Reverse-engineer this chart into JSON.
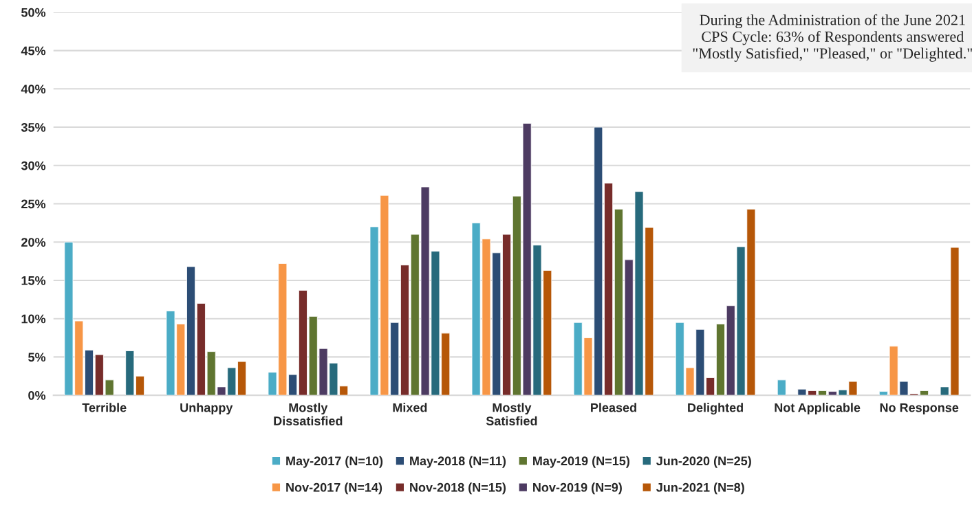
{
  "chart_data": {
    "type": "bar",
    "categories": [
      "Terrible",
      "Unhappy",
      "Mostly\nDissatisfied",
      "Mixed",
      "Mostly\nSatisfied",
      "Pleased",
      "Delighted",
      "Not Applicable",
      "No Response"
    ],
    "series": [
      {
        "name": "May-2017 (N=10)",
        "color": "#4bacc6",
        "values": [
          20,
          11,
          3,
          22,
          22.5,
          9.5,
          9.5,
          2,
          0.5
        ]
      },
      {
        "name": "Nov-2017 (N=14)",
        "color": "#f79646",
        "values": [
          9.7,
          9.3,
          17.2,
          26.1,
          20.4,
          7.5,
          3.6,
          null,
          6.4
        ]
      },
      {
        "name": "May-2018 (N=11)",
        "color": "#2c4d75",
        "values": [
          5.9,
          16.8,
          2.7,
          9.5,
          18.6,
          35,
          8.6,
          0.8,
          1.8
        ]
      },
      {
        "name": "Nov-2018 (N=15)",
        "color": "#772c2a",
        "values": [
          5.3,
          12,
          13.7,
          17,
          21,
          27.7,
          2.3,
          0.6,
          0.2
        ]
      },
      {
        "name": "May-2019 (N=15)",
        "color": "#5f7530",
        "values": [
          2,
          5.7,
          10.3,
          21,
          26,
          24.3,
          9.3,
          0.6,
          0.6
        ]
      },
      {
        "name": "Nov-2019 (N=9)",
        "color": "#4d3b62",
        "values": [
          null,
          1.1,
          6.1,
          27.2,
          35.5,
          17.7,
          11.7,
          0.5,
          null
        ]
      },
      {
        "name": "Jun-2020 (N=25)",
        "color": "#276a7c",
        "values": [
          5.8,
          3.6,
          4.2,
          18.8,
          19.6,
          26.6,
          19.4,
          0.7,
          1.1
        ]
      },
      {
        "name": "Jun-2021 (N=8)",
        "color": "#b65708",
        "values": [
          2.5,
          4.4,
          1.2,
          8.1,
          16.3,
          21.9,
          24.3,
          1.8,
          19.3
        ]
      }
    ],
    "ylim": [
      0,
      50
    ],
    "yticks": [
      {
        "value": 0,
        "label": "0%"
      },
      {
        "value": 5,
        "label": "5%"
      },
      {
        "value": 10,
        "label": "10%"
      },
      {
        "value": 15,
        "label": "15%"
      },
      {
        "value": 20,
        "label": "20%"
      },
      {
        "value": 25,
        "label": "25%"
      },
      {
        "value": 30,
        "label": "30%"
      },
      {
        "value": 35,
        "label": "35%"
      },
      {
        "value": 40,
        "label": "40%"
      },
      {
        "value": 45,
        "label": "45%"
      },
      {
        "value": 50,
        "label": "50%"
      }
    ],
    "grid": "y",
    "legend": "bottom",
    "annotations": [
      "During the Administration of the June 2021\nCPS Cycle: 63% of Respondents answered\n\"Mostly Satisfied,\" \"Pleased,\" or \"Delighted.\""
    ]
  }
}
